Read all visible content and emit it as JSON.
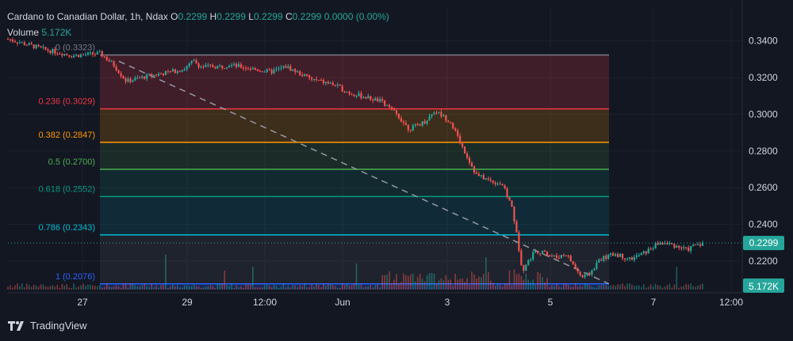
{
  "header": {
    "symbol": "Cardano to Canadian Dollar, 1h, Ndax",
    "o_label": "O",
    "o_value": "0.2299",
    "h_label": "H",
    "h_value": "0.2299",
    "l_label": "L",
    "l_value": "0.2299",
    "c_label": "C",
    "c_value": "0.2299",
    "change": "0.0000 (0.00%)"
  },
  "volume": {
    "label": "Volume",
    "value": "5.172K"
  },
  "footer": {
    "brand": "TradingView"
  },
  "colors": {
    "background": "#131722",
    "up": "#26a69a",
    "down": "#ef5350",
    "price_badge": "#26a69a",
    "text": "#d1d4dc"
  },
  "chart_data": {
    "type": "candlestick",
    "title": "Cardano to Canadian Dollar, 1h, Ndax",
    "price_axis": {
      "ticks": [
        0.34,
        0.32,
        0.3,
        0.28,
        0.26,
        0.24,
        0.22
      ],
      "tick_labels": [
        "0.3400",
        "0.3200",
        "0.3000",
        "0.2800",
        "0.2600",
        "0.2400",
        "0.2200"
      ],
      "range": [
        0.2045,
        0.345
      ],
      "last_price_label": "0.2299",
      "volume_label": "5.172K"
    },
    "time_axis": {
      "labels": [
        "27",
        "29",
        "12:00",
        "Jun",
        "3",
        "5",
        "7",
        "12:00"
      ]
    },
    "fibonacci": {
      "levels": [
        {
          "ratio": "0",
          "price": 0.3323,
          "label": "0 (0.3323)"
        },
        {
          "ratio": "0.236",
          "price": 0.3029,
          "label": "0.236 (0.3029)"
        },
        {
          "ratio": "0.382",
          "price": 0.2847,
          "label": "0.382 (0.2847)"
        },
        {
          "ratio": "0.5",
          "price": 0.27,
          "label": "0.5 (0.2700)"
        },
        {
          "ratio": "0.618",
          "price": 0.2552,
          "label": "0.618 (0.2552)"
        },
        {
          "ratio": "0.786",
          "price": 0.2343,
          "label": "0.786 (0.2343)"
        },
        {
          "ratio": "1",
          "price": 0.2076,
          "label": "1 (0.2076)"
        }
      ]
    },
    "price_path": [
      [
        0,
        0.341
      ],
      [
        1.5,
        0.335
      ],
      [
        2.5,
        0.332
      ],
      [
        3.6,
        0.333
      ],
      [
        4.1,
        0.327
      ],
      [
        4.6,
        0.318
      ],
      [
        5.5,
        0.321
      ],
      [
        6.3,
        0.323
      ],
      [
        6.9,
        0.325
      ],
      [
        7.2,
        0.329
      ],
      [
        7.5,
        0.326
      ],
      [
        8.3,
        0.326
      ],
      [
        8.6,
        0.327
      ],
      [
        9.4,
        0.325
      ],
      [
        10.2,
        0.323
      ],
      [
        10.8,
        0.326
      ],
      [
        11.8,
        0.319
      ],
      [
        12.7,
        0.316
      ],
      [
        13.2,
        0.312
      ],
      [
        14.5,
        0.307
      ],
      [
        15.1,
        0.3
      ],
      [
        15.6,
        0.292
      ],
      [
        16.2,
        0.296
      ],
      [
        16.6,
        0.302
      ],
      [
        17.2,
        0.296
      ],
      [
        17.6,
        0.284
      ],
      [
        18.2,
        0.267
      ],
      [
        18.7,
        0.264
      ],
      [
        19.2,
        0.262
      ],
      [
        19.6,
        0.249
      ],
      [
        20.0,
        0.215
      ],
      [
        20.5,
        0.226
      ],
      [
        21.3,
        0.222
      ],
      [
        21.7,
        0.224
      ],
      [
        22.3,
        0.211
      ],
      [
        22.6,
        0.213
      ],
      [
        23.0,
        0.221
      ],
      [
        23.6,
        0.224
      ],
      [
        24.2,
        0.221
      ],
      [
        24.8,
        0.225
      ],
      [
        25.3,
        0.23
      ],
      [
        25.8,
        0.229
      ],
      [
        26.4,
        0.226
      ],
      [
        26.7,
        0.229
      ],
      [
        27.0,
        0.2299
      ]
    ]
  }
}
